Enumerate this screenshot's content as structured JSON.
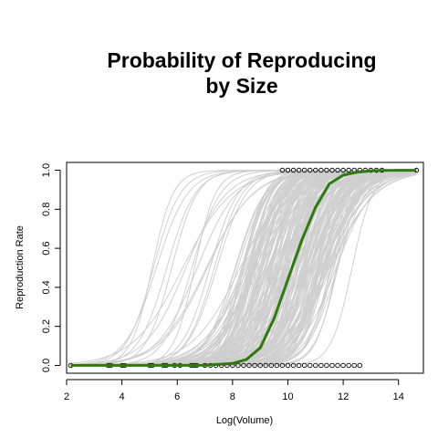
{
  "chart_data": {
    "type": "line",
    "title_lines": [
      "Probability of Reproducing",
      "by Size"
    ],
    "xlabel": "Log(Volume)",
    "ylabel": "Reproduction Rate",
    "xlim": [
      2.0,
      14.9
    ],
    "ylim": [
      -0.04,
      1.04
    ],
    "x_ticks": [
      "2",
      "4",
      "6",
      "8",
      "10",
      "12",
      "14"
    ],
    "y_ticks": [
      "0.0",
      "0.2",
      "0.4",
      "0.6",
      "0.8",
      "1.0"
    ],
    "colors": {
      "fit": "#2e7a0e",
      "bootstrap": "#cfcfcf",
      "points": "#000000"
    },
    "fit_curve": {
      "x": [
        2.15,
        5.0,
        6.0,
        7.0,
        8.0,
        8.5,
        9.0,
        9.5,
        10.0,
        10.2,
        10.5,
        11.0,
        11.5,
        12.0,
        12.5,
        13.0,
        13.5,
        14.0,
        14.65
      ],
      "y": [
        0.0,
        0.0,
        0.0,
        0.001,
        0.01,
        0.03,
        0.09,
        0.24,
        0.44,
        0.52,
        0.64,
        0.81,
        0.93,
        0.975,
        0.99,
        0.997,
        0.999,
        1.0,
        1.0
      ]
    },
    "bootstrap_curves": {
      "count": 200,
      "midpoint_range": [
        5.0,
        12.6
      ],
      "typical_midpoint_range": [
        8.3,
        11.8
      ]
    },
    "points_y0_x": [
      2.15,
      3.5,
      3.6,
      4.0,
      4.1,
      5.0,
      5.1,
      5.5,
      5.6,
      5.9,
      6.1,
      6.5,
      6.6,
      6.7,
      7.0,
      7.2,
      7.4,
      7.6,
      7.8,
      8.0,
      8.2,
      8.4,
      8.6,
      8.8,
      9.0,
      9.2,
      9.4,
      9.6,
      9.8,
      10.0,
      10.2,
      10.4,
      10.6,
      10.8,
      11.0,
      11.2,
      11.4,
      11.6,
      11.8,
      12.0,
      12.2,
      12.4,
      12.6
    ],
    "points_y1_x": [
      9.8,
      10.0,
      10.2,
      10.4,
      10.6,
      10.8,
      11.0,
      11.2,
      11.4,
      11.6,
      11.8,
      12.0,
      12.2,
      12.4,
      12.6,
      12.8,
      13.0,
      13.2,
      13.4,
      14.65
    ]
  }
}
